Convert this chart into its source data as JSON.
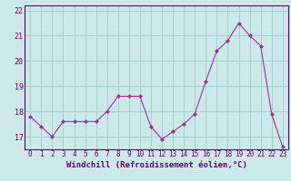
{
  "x": [
    0,
    1,
    2,
    3,
    4,
    5,
    6,
    7,
    8,
    9,
    10,
    11,
    12,
    13,
    14,
    15,
    16,
    17,
    18,
    19,
    20,
    21,
    22,
    23
  ],
  "y": [
    17.8,
    17.4,
    17.0,
    17.6,
    17.6,
    17.6,
    17.6,
    18.0,
    18.6,
    18.6,
    18.6,
    17.4,
    16.9,
    17.2,
    17.5,
    17.9,
    19.2,
    20.4,
    20.8,
    21.5,
    21.0,
    20.6,
    17.9,
    16.6
  ],
  "line_color": "#993399",
  "marker": "D",
  "marker_size": 2.0,
  "bg_color": "#cce8e8",
  "grid_color": "#99cccc",
  "xlabel": "Windchill (Refroidissement éolien,°C)",
  "tick_color": "#660066",
  "ylim": [
    16.5,
    22.2
  ],
  "xlim": [
    -0.5,
    23.5
  ],
  "yticks": [
    17,
    18,
    19,
    20,
    21,
    22
  ],
  "xticks": [
    0,
    1,
    2,
    3,
    4,
    5,
    6,
    7,
    8,
    9,
    10,
    11,
    12,
    13,
    14,
    15,
    16,
    17,
    18,
    19,
    20,
    21,
    22,
    23
  ],
  "spine_color": "#660066",
  "tick_fontsize": 5.5,
  "xlabel_fontsize": 6.5
}
